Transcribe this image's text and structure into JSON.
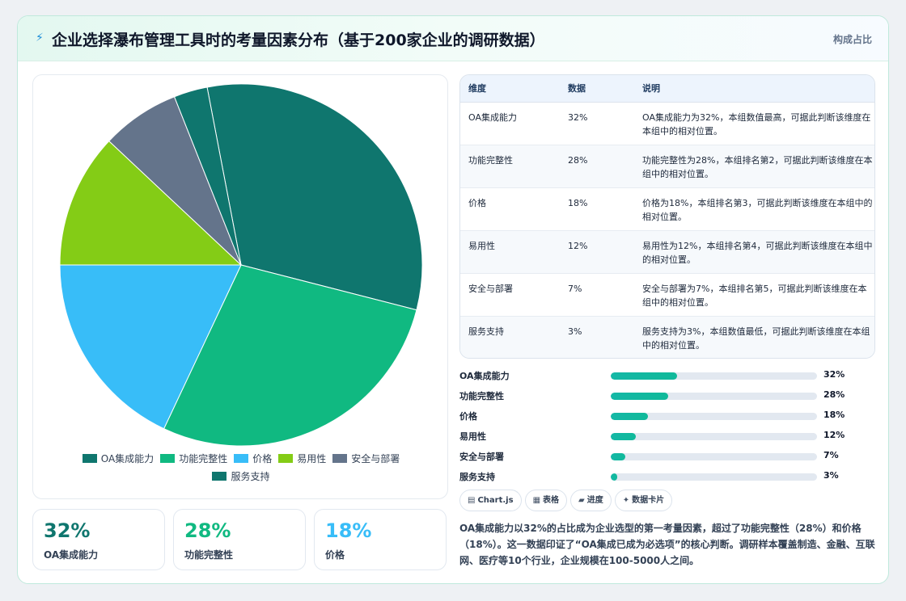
{
  "header": {
    "title": "企业选择瀑布管理工具时的考量因素分布（基于200家企业的调研数据）",
    "tag": "构成占比"
  },
  "chart_data": {
    "type": "pie",
    "categories": [
      "OA集成能力",
      "功能完整性",
      "价格",
      "易用性",
      "安全与部署",
      "服务支持"
    ],
    "values": [
      32,
      28,
      18,
      12,
      7,
      3
    ],
    "colors": [
      "#0f766e",
      "#10b981",
      "#38bdf8",
      "#84cc16",
      "#64748b",
      "#0f766e"
    ],
    "legend_position": "bottom"
  },
  "stat_cards": [
    {
      "value": "32%",
      "label": "OA集成能力",
      "color": "#0f766e"
    },
    {
      "value": "28%",
      "label": "功能完整性",
      "color": "#10b981"
    },
    {
      "value": "18%",
      "label": "价格",
      "color": "#38bdf8"
    }
  ],
  "table": {
    "headers": [
      "维度",
      "数据",
      "说明"
    ],
    "rows": [
      {
        "dimension": "OA集成能力",
        "value": "32%",
        "note": "OA集成能力为32%，本组数值最高，可据此判断该维度在本组中的相对位置。"
      },
      {
        "dimension": "功能完整性",
        "value": "28%",
        "note": "功能完整性为28%，本组排名第2，可据此判断该维度在本组中的相对位置。"
      },
      {
        "dimension": "价格",
        "value": "18%",
        "note": "价格为18%，本组排名第3，可据此判断该维度在本组中的相对位置。"
      },
      {
        "dimension": "易用性",
        "value": "12%",
        "note": "易用性为12%，本组排名第4，可据此判断该维度在本组中的相对位置。"
      },
      {
        "dimension": "安全与部署",
        "value": "7%",
        "note": "安全与部署为7%，本组排名第5，可据此判断该维度在本组中的相对位置。"
      },
      {
        "dimension": "服务支持",
        "value": "3%",
        "note": "服务支持为3%，本组数值最低，可据此判断该维度在本组中的相对位置。"
      }
    ]
  },
  "progress": [
    {
      "label": "OA集成能力",
      "value": 32,
      "display": "32%"
    },
    {
      "label": "功能完整性",
      "value": 28,
      "display": "28%"
    },
    {
      "label": "价格",
      "value": 18,
      "display": "18%"
    },
    {
      "label": "易用性",
      "value": 12,
      "display": "12%"
    },
    {
      "label": "安全与部署",
      "value": 7,
      "display": "7%"
    },
    {
      "label": "服务支持",
      "value": 3,
      "display": "3%"
    }
  ],
  "chips": [
    {
      "icon": "▤",
      "icon_name": "chart-icon",
      "label": "Chart.js"
    },
    {
      "icon": "▦",
      "icon_name": "table-icon",
      "label": "表格"
    },
    {
      "icon": "▰",
      "icon_name": "progress-icon",
      "label": "进度"
    },
    {
      "icon": "✦",
      "icon_name": "sparkle-icon",
      "label": "数据卡片"
    }
  ],
  "summary": "OA集成能力以32%的占比成为企业选型的第一考量因素，超过了功能完整性（28%）和价格（18%）。这一数据印证了“OA集成已成为必选项”的核心判断。调研样本覆盖制造、金融、互联网、医疗等10个行业，企业规模在100-5000人之间。"
}
